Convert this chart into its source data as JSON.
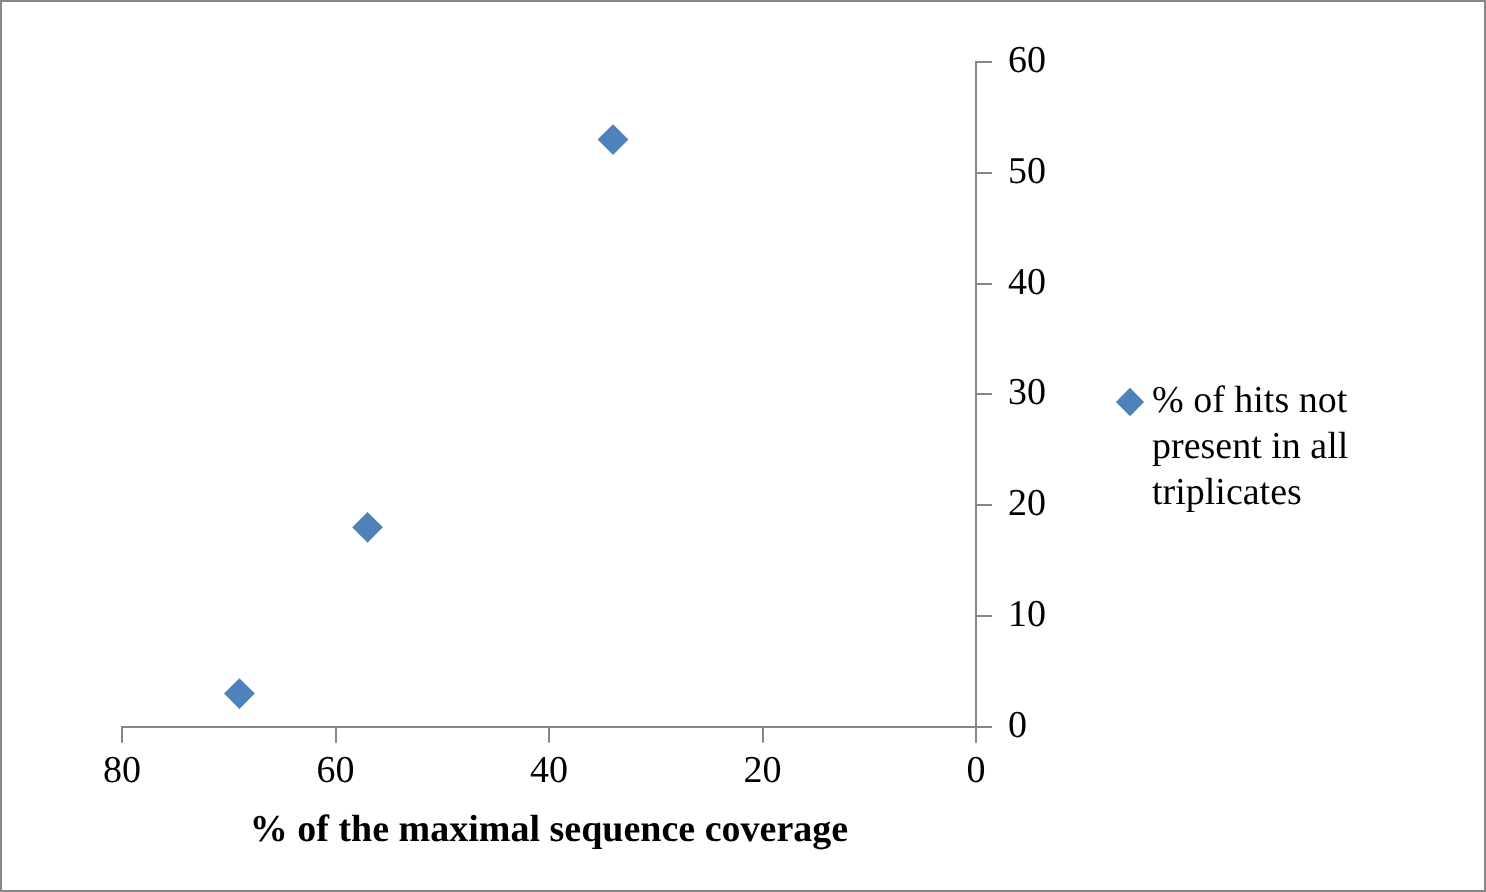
{
  "chart_data": {
    "type": "scatter",
    "xlabel": "% of the maximal sequence coverage",
    "x": [
      69,
      57,
      34
    ],
    "series": [
      {
        "name": "% of hits not present in all triplicates",
        "color": "#4f81bd",
        "values": [
          3,
          18,
          53
        ]
      }
    ],
    "xlim": [
      80,
      0
    ],
    "xticks": [
      80,
      60,
      40,
      20,
      0
    ],
    "ylim": [
      0,
      60
    ],
    "yticks": [
      0,
      10,
      20,
      30,
      40,
      50,
      60
    ],
    "marker": "diamond",
    "grid": false,
    "legend": "right"
  }
}
